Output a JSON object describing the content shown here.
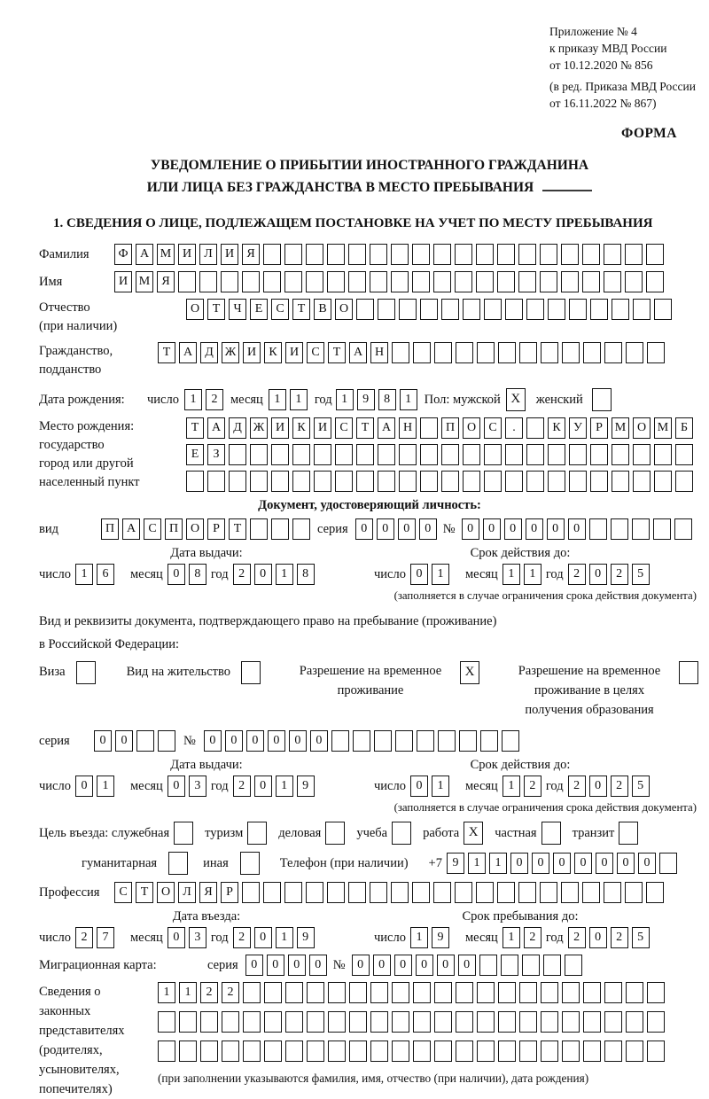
{
  "meta": {
    "appendix_lines": [
      "Приложение № 4",
      "к приказу МВД России",
      "от 10.12.2020 № 856"
    ],
    "revision_lines": [
      "(в ред. Приказа МВД России",
      "от 16.11.2022 № 867)"
    ],
    "form_label": "ФОРМА"
  },
  "title": {
    "line1": "УВЕДОМЛЕНИЕ О ПРИБЫТИИ ИНОСТРАННОГО ГРАЖДАНИНА",
    "line2": "ИЛИ ЛИЦА БЕЗ ГРАЖДАНСТВА В МЕСТО ПРЕБЫВАНИЯ"
  },
  "section1_heading": "1. СВЕДЕНИЯ О ЛИЦЕ, ПОДЛЕЖАЩЕМ ПОСТАНОВКЕ НА УЧЕТ ПО МЕСТУ ПРЕБЫВАНИЯ",
  "labels": {
    "surname": "Фамилия",
    "given_name": "Имя",
    "patronymic_1": "Отчество",
    "patronymic_2": "(при наличии)",
    "citizenship_1": "Гражданство,",
    "citizenship_2": "подданство",
    "birth_date": "Дата рождения:",
    "day": "число",
    "month": "месяц",
    "year": "год",
    "sex": "Пол: мужской",
    "female": "женский",
    "birth_place_1": "Место рождения:",
    "birth_place_2": "государство",
    "birth_place_3": "город или другой",
    "birth_place_4": "населенный пункт",
    "identity_doc_heading": "Документ, удостоверяющий личность:",
    "doc_type": "вид",
    "series": "серия",
    "no_sign": "№",
    "issue_date": "Дата выдачи:",
    "valid_until": "Срок действия до:",
    "valid_note": "(заполняется в случае ограничения срока действия документа)",
    "residence_doc_1": "Вид и реквизиты документа, подтверждающего право на пребывание (проживание)",
    "residence_doc_2": "в Российской Федерации:",
    "visa": "Виза",
    "residence_permit": "Вид на жительство",
    "temp_residence_1": "Разрешение на временное",
    "temp_residence_2": "проживание",
    "temp_residence_edu_1": "Разрешение на временное",
    "temp_residence_edu_2": "проживание в целях",
    "temp_residence_edu_3": "получения образования",
    "purpose": "Цель въезда: служебная",
    "tourism": "туризм",
    "business": "деловая",
    "study": "учеба",
    "work": "работа",
    "private": "частная",
    "transit": "транзит",
    "humanitarian": "гуманитарная",
    "other": "иная",
    "phone": "Телефон (при наличии)",
    "plus7": "+7",
    "profession": "Профессия",
    "entry_date": "Дата въезда:",
    "stay_until": "Срок пребывания до:",
    "migration_card": "Миграционная карта:",
    "guardians_1": "Сведения о",
    "guardians_2": "законных",
    "guardians_3": "представителях",
    "guardians_4": "(родителях,",
    "guardians_5": "усыновителях,",
    "guardians_6": "попечителях)",
    "guardians_note": "(при заполнении указываются фамилия, имя, отчество (при наличии), дата рождения)"
  },
  "cells": {
    "surname": {
      "value": "ФАМИЛИЯ",
      "total": 26
    },
    "given_name": {
      "value": "ИМЯ",
      "total": 26
    },
    "patronymic": {
      "value": "ОТЧЕСТВО",
      "total": 23
    },
    "citizenship": {
      "value": "ТАДЖИКИСТАН",
      "total": 24
    },
    "birth_day": {
      "value": "12",
      "total": 2
    },
    "birth_month": {
      "value": "11",
      "total": 2
    },
    "birth_year": {
      "value": "1981",
      "total": 4
    },
    "birth_place_1": {
      "value": "ТАДЖИКИСТАН ПОС. КУРМОМБ",
      "total": 24
    },
    "birth_place_2": {
      "value": "ЕЗ",
      "total": 24
    },
    "birth_place_3": {
      "value": "",
      "total": 24
    },
    "id_type": {
      "value": "ПАСПОРТ",
      "total": 10
    },
    "id_series": {
      "value": "0000",
      "total": 4
    },
    "id_number": {
      "value": "000000",
      "total": 11
    },
    "id_issue_day": {
      "value": "16",
      "total": 2
    },
    "id_issue_month": {
      "value": "08",
      "total": 2
    },
    "id_issue_year": {
      "value": "2018",
      "total": 4
    },
    "id_valid_day": {
      "value": "01",
      "total": 2
    },
    "id_valid_month": {
      "value": "11",
      "total": 2
    },
    "id_valid_year": {
      "value": "2025",
      "total": 4
    },
    "res_series": {
      "value": "00",
      "total": 4
    },
    "res_number": {
      "value": "000000",
      "total": 15
    },
    "res_issue_day": {
      "value": "01",
      "total": 2
    },
    "res_issue_month": {
      "value": "03",
      "total": 2
    },
    "res_issue_year": {
      "value": "2019",
      "total": 4
    },
    "res_valid_day": {
      "value": "01",
      "total": 2
    },
    "res_valid_month": {
      "value": "12",
      "total": 2
    },
    "res_valid_year": {
      "value": "2025",
      "total": 4
    },
    "phone": {
      "value": "9110000000",
      "total": 11
    },
    "profession": {
      "value": "СТОЛЯР",
      "total": 26
    },
    "entry_day": {
      "value": "27",
      "total": 2
    },
    "entry_month": {
      "value": "03",
      "total": 2
    },
    "entry_year": {
      "value": "2019",
      "total": 4
    },
    "stay_day": {
      "value": "19",
      "total": 2
    },
    "stay_month": {
      "value": "12",
      "total": 2
    },
    "stay_year": {
      "value": "2025",
      "total": 4
    },
    "mig_series": {
      "value": "0000",
      "total": 4
    },
    "mig_number": {
      "value": "000000",
      "total": 11
    },
    "guardians_1": {
      "value": "1122",
      "total": 24
    },
    "guardians_2": {
      "value": "",
      "total": 24
    },
    "guardians_3": {
      "value": "",
      "total": 24
    }
  },
  "checks": {
    "male": true,
    "female": false,
    "visa": false,
    "residence_permit": false,
    "temp_residence": true,
    "temp_residence_edu": false,
    "official": false,
    "tourism": false,
    "business": false,
    "study": false,
    "work": true,
    "private": false,
    "transit": false,
    "humanitarian": false,
    "other": false
  },
  "marks": {
    "checked": "X"
  }
}
